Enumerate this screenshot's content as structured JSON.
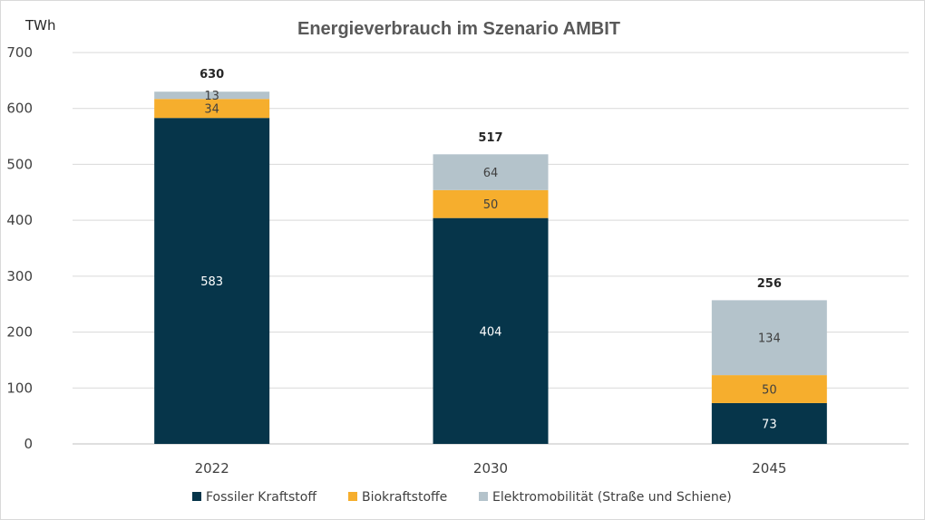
{
  "chart_data": {
    "type": "bar",
    "stacked": true,
    "title": "Energieverbrauch im Szenario AMBIT",
    "ylabel": "TWh",
    "xlabel": "",
    "ylim": [
      0,
      700
    ],
    "yticks": [
      0,
      100,
      200,
      300,
      400,
      500,
      600,
      700
    ],
    "categories": [
      "2022",
      "2030",
      "2045"
    ],
    "totals": [
      630,
      517,
      256
    ],
    "grid": true,
    "legend_position": "bottom",
    "series": [
      {
        "name": "Fossiler Kraftstoff",
        "values": [
          583,
          404,
          73
        ],
        "color": "#06354a",
        "label_color": "#ffffff"
      },
      {
        "name": "Biokraftstoffe",
        "values": [
          34,
          50,
          50
        ],
        "color": "#f6ae2d",
        "label_color": "#404040"
      },
      {
        "name": "Elektromobilität (Straße und Schiene)",
        "values": [
          13,
          64,
          134
        ],
        "color": "#b4c3cb",
        "label_color": "#404040"
      }
    ]
  }
}
